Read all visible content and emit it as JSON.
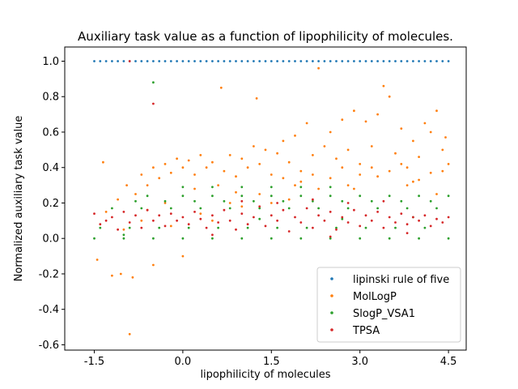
{
  "chart_data": {
    "type": "scatter",
    "title": "Auxiliary task value as a function of lipophilicity of molecules.",
    "xlabel": "lipophilicity of molecules",
    "ylabel": "Normalized auxiliary task value",
    "xlim": [
      -2.0,
      4.8
    ],
    "ylim": [
      -0.63,
      1.08
    ],
    "xticks": [
      -1.5,
      0.0,
      1.5,
      3.0,
      4.5
    ],
    "xtick_labels": [
      "-1.5",
      "0.0",
      "1.5",
      "3.0",
      "4.5"
    ],
    "yticks": [
      -0.6,
      -0.4,
      -0.2,
      0.0,
      0.2,
      0.4,
      0.6,
      0.8,
      1.0
    ],
    "ytick_labels": [
      "-0.6",
      "-0.4",
      "-0.2",
      "0.0",
      "0.2",
      "0.4",
      "0.6",
      "0.8",
      "1.0"
    ],
    "grid": false,
    "legend_position": "lower-right",
    "series": [
      {
        "name": "lipinski rule of five",
        "color": "#1f77b4",
        "points": [
          [
            -1.5,
            1.0
          ],
          [
            -1.4,
            1.0
          ],
          [
            -1.3,
            1.0
          ],
          [
            -1.2,
            1.0
          ],
          [
            -1.1,
            1.0
          ],
          [
            -1.0,
            1.0
          ],
          [
            -0.9,
            1.0
          ],
          [
            -0.8,
            1.0
          ],
          [
            -0.7,
            1.0
          ],
          [
            -0.6,
            1.0
          ],
          [
            -0.5,
            1.0
          ],
          [
            -0.4,
            1.0
          ],
          [
            -0.3,
            1.0
          ],
          [
            -0.2,
            1.0
          ],
          [
            -0.1,
            1.0
          ],
          [
            0.0,
            1.0
          ],
          [
            0.1,
            1.0
          ],
          [
            0.2,
            1.0
          ],
          [
            0.3,
            1.0
          ],
          [
            0.4,
            1.0
          ],
          [
            0.5,
            1.0
          ],
          [
            0.6,
            1.0
          ],
          [
            0.7,
            1.0
          ],
          [
            0.8,
            1.0
          ],
          [
            0.9,
            1.0
          ],
          [
            1.0,
            1.0
          ],
          [
            1.1,
            1.0
          ],
          [
            1.2,
            1.0
          ],
          [
            1.3,
            1.0
          ],
          [
            1.4,
            1.0
          ],
          [
            1.5,
            1.0
          ],
          [
            1.6,
            1.0
          ],
          [
            1.7,
            1.0
          ],
          [
            1.8,
            1.0
          ],
          [
            1.9,
            1.0
          ],
          [
            2.0,
            1.0
          ],
          [
            2.1,
            1.0
          ],
          [
            2.2,
            1.0
          ],
          [
            2.3,
            1.0
          ],
          [
            2.4,
            1.0
          ],
          [
            2.5,
            1.0
          ],
          [
            2.6,
            1.0
          ],
          [
            2.7,
            1.0
          ],
          [
            2.8,
            1.0
          ],
          [
            2.9,
            1.0
          ],
          [
            3.0,
            1.0
          ],
          [
            3.1,
            1.0
          ],
          [
            3.2,
            1.0
          ],
          [
            3.3,
            1.0
          ],
          [
            3.4,
            1.0
          ],
          [
            3.5,
            1.0
          ],
          [
            3.6,
            1.0
          ],
          [
            3.7,
            1.0
          ],
          [
            3.8,
            1.0
          ],
          [
            3.9,
            1.0
          ],
          [
            4.0,
            1.0
          ],
          [
            4.1,
            1.0
          ],
          [
            4.2,
            1.0
          ],
          [
            4.3,
            1.0
          ],
          [
            4.4,
            1.0
          ],
          [
            4.5,
            1.0
          ]
        ]
      },
      {
        "name": "MolLogP",
        "color": "#ff7f0e",
        "points": [
          [
            -1.45,
            -0.12
          ],
          [
            -1.35,
            0.43
          ],
          [
            -1.2,
            -0.21
          ],
          [
            -1.05,
            -0.2
          ],
          [
            -0.9,
            -0.54
          ],
          [
            -0.85,
            -0.22
          ],
          [
            -1.3,
            0.15
          ],
          [
            -1.1,
            0.22
          ],
          [
            -0.95,
            0.3
          ],
          [
            -0.8,
            0.25
          ],
          [
            -0.7,
            0.36
          ],
          [
            -0.6,
            0.3
          ],
          [
            -0.5,
            0.4
          ],
          [
            -0.4,
            0.34
          ],
          [
            -0.3,
            0.42
          ],
          [
            -0.2,
            0.37
          ],
          [
            -0.1,
            0.45
          ],
          [
            0.0,
            0.4
          ],
          [
            0.1,
            0.44
          ],
          [
            0.2,
            0.36
          ],
          [
            0.3,
            0.47
          ],
          [
            0.4,
            0.4
          ],
          [
            0.5,
            0.43
          ],
          [
            0.65,
            0.85
          ],
          [
            0.7,
            0.38
          ],
          [
            0.8,
            0.47
          ],
          [
            0.9,
            0.35
          ],
          [
            1.0,
            0.45
          ],
          [
            1.1,
            0.4
          ],
          [
            1.2,
            0.52
          ],
          [
            1.25,
            0.79
          ],
          [
            1.3,
            0.42
          ],
          [
            1.4,
            0.5
          ],
          [
            1.5,
            0.36
          ],
          [
            1.6,
            0.48
          ],
          [
            1.7,
            0.55
          ],
          [
            1.8,
            0.43
          ],
          [
            1.9,
            0.58
          ],
          [
            2.0,
            0.38
          ],
          [
            2.1,
            0.65
          ],
          [
            2.2,
            0.47
          ],
          [
            2.3,
            0.96
          ],
          [
            2.4,
            0.52
          ],
          [
            2.5,
            0.6
          ],
          [
            2.6,
            0.45
          ],
          [
            2.7,
            0.67
          ],
          [
            2.8,
            0.5
          ],
          [
            2.9,
            0.72
          ],
          [
            3.0,
            0.42
          ],
          [
            3.1,
            0.66
          ],
          [
            3.2,
            0.52
          ],
          [
            3.3,
            0.7
          ],
          [
            3.4,
            0.86
          ],
          [
            3.5,
            0.8
          ],
          [
            3.6,
            0.48
          ],
          [
            3.7,
            0.62
          ],
          [
            3.8,
            0.4
          ],
          [
            3.9,
            0.55
          ],
          [
            4.0,
            0.46
          ],
          [
            4.1,
            0.65
          ],
          [
            4.2,
            0.6
          ],
          [
            4.3,
            0.72
          ],
          [
            4.4,
            0.5
          ],
          [
            4.45,
            0.57
          ],
          [
            4.5,
            0.42
          ],
          [
            -0.5,
            -0.15
          ],
          [
            0.0,
            -0.1
          ],
          [
            -0.2,
            0.07
          ],
          [
            0.3,
            0.14
          ],
          [
            0.8,
            0.2
          ],
          [
            1.3,
            0.25
          ],
          [
            1.8,
            0.22
          ],
          [
            2.3,
            0.28
          ],
          [
            2.8,
            0.3
          ],
          [
            3.3,
            0.35
          ],
          [
            3.8,
            0.3
          ],
          [
            4.3,
            0.25
          ],
          [
            -0.6,
            0.16
          ],
          [
            0.5,
            0.1
          ],
          [
            1.0,
            0.18
          ],
          [
            1.5,
            0.2
          ],
          [
            2.0,
            0.32
          ],
          [
            2.5,
            0.34
          ],
          [
            3.0,
            0.36
          ],
          [
            3.5,
            0.38
          ],
          [
            4.0,
            0.33
          ],
          [
            0.2,
            0.28
          ],
          [
            0.6,
            0.3
          ],
          [
            1.7,
            0.34
          ],
          [
            2.2,
            0.36
          ],
          [
            2.7,
            0.4
          ],
          [
            3.2,
            0.4
          ],
          [
            3.7,
            0.42
          ],
          [
            4.2,
            0.37
          ],
          [
            -1.0,
            0.05
          ],
          [
            -0.7,
            0.1
          ],
          [
            -0.3,
            0.2
          ],
          [
            0.9,
            0.26
          ],
          [
            1.9,
            0.3
          ],
          [
            2.9,
            0.28
          ],
          [
            3.9,
            0.32
          ],
          [
            4.4,
            0.38
          ]
        ]
      },
      {
        "name": "SlogP_VSA1",
        "color": "#2ca02c",
        "points": [
          [
            -0.5,
            0.88
          ],
          [
            -1.5,
            0.0
          ],
          [
            -1.0,
            0.0
          ],
          [
            -0.5,
            0.0
          ],
          [
            0.0,
            0.0
          ],
          [
            0.5,
            0.0
          ],
          [
            1.0,
            0.0
          ],
          [
            1.5,
            0.0
          ],
          [
            2.0,
            0.0
          ],
          [
            2.5,
            0.0
          ],
          [
            3.0,
            0.0
          ],
          [
            3.5,
            0.0
          ],
          [
            4.0,
            0.0
          ],
          [
            4.5,
            0.0
          ],
          [
            -1.4,
            0.06
          ],
          [
            -0.9,
            0.06
          ],
          [
            -0.4,
            0.06
          ],
          [
            0.1,
            0.06
          ],
          [
            0.6,
            0.06
          ],
          [
            1.1,
            0.06
          ],
          [
            1.6,
            0.06
          ],
          [
            2.1,
            0.06
          ],
          [
            2.6,
            0.06
          ],
          [
            3.1,
            0.06
          ],
          [
            3.6,
            0.06
          ],
          [
            4.1,
            0.06
          ],
          [
            -1.2,
            0.17
          ],
          [
            -0.7,
            0.17
          ],
          [
            -0.2,
            0.17
          ],
          [
            0.3,
            0.17
          ],
          [
            0.8,
            0.17
          ],
          [
            1.3,
            0.17
          ],
          [
            1.8,
            0.17
          ],
          [
            2.3,
            0.17
          ],
          [
            2.8,
            0.17
          ],
          [
            3.3,
            0.17
          ],
          [
            3.8,
            0.17
          ],
          [
            4.3,
            0.17
          ],
          [
            -0.8,
            0.21
          ],
          [
            -0.3,
            0.21
          ],
          [
            0.2,
            0.21
          ],
          [
            0.7,
            0.21
          ],
          [
            1.2,
            0.21
          ],
          [
            1.7,
            0.21
          ],
          [
            2.2,
            0.21
          ],
          [
            2.7,
            0.21
          ],
          [
            3.2,
            0.21
          ],
          [
            3.7,
            0.21
          ],
          [
            4.2,
            0.21
          ],
          [
            -0.6,
            0.24
          ],
          [
            0.0,
            0.24
          ],
          [
            0.5,
            0.24
          ],
          [
            1.0,
            0.24
          ],
          [
            1.5,
            0.24
          ],
          [
            2.0,
            0.24
          ],
          [
            2.5,
            0.24
          ],
          [
            3.0,
            0.24
          ],
          [
            3.5,
            0.24
          ],
          [
            4.0,
            0.24
          ],
          [
            4.5,
            0.24
          ],
          [
            0.0,
            0.29
          ],
          [
            0.5,
            0.29
          ],
          [
            1.0,
            0.29
          ],
          [
            1.5,
            0.29
          ],
          [
            2.0,
            0.29
          ],
          [
            2.5,
            0.29
          ],
          [
            -1.0,
            0.02
          ],
          [
            1.3,
            0.11
          ],
          [
            2.7,
            0.11
          ],
          [
            3.9,
            0.12
          ]
        ]
      },
      {
        "name": "TPSA",
        "color": "#d62728",
        "points": [
          [
            -0.5,
            0.76
          ],
          [
            -0.9,
            1.0
          ],
          [
            -1.5,
            0.14
          ],
          [
            -1.4,
            0.08
          ],
          [
            -1.3,
            0.1
          ],
          [
            -1.2,
            0.12
          ],
          [
            -1.1,
            0.05
          ],
          [
            -1.0,
            0.15
          ],
          [
            -0.9,
            0.09
          ],
          [
            -0.8,
            0.13
          ],
          [
            -0.7,
            0.06
          ],
          [
            -0.6,
            0.16
          ],
          [
            -0.5,
            0.1
          ],
          [
            -0.4,
            0.13
          ],
          [
            -0.3,
            0.07
          ],
          [
            -0.2,
            0.14
          ],
          [
            -0.1,
            0.1
          ],
          [
            0.0,
            0.12
          ],
          [
            0.1,
            0.08
          ],
          [
            0.2,
            0.15
          ],
          [
            0.3,
            0.11
          ],
          [
            0.4,
            0.06
          ],
          [
            0.5,
            0.13
          ],
          [
            0.6,
            0.09
          ],
          [
            0.7,
            0.16
          ],
          [
            0.8,
            0.1
          ],
          [
            0.9,
            0.05
          ],
          [
            1.0,
            0.14
          ],
          [
            1.1,
            0.08
          ],
          [
            1.2,
            0.12
          ],
          [
            1.3,
            0.18
          ],
          [
            1.4,
            0.07
          ],
          [
            1.5,
            0.13
          ],
          [
            1.6,
            0.1
          ],
          [
            1.7,
            0.16
          ],
          [
            1.8,
            0.04
          ],
          [
            1.9,
            0.12
          ],
          [
            2.0,
            0.09
          ],
          [
            2.1,
            0.17
          ],
          [
            2.2,
            0.06
          ],
          [
            2.3,
            0.13
          ],
          [
            2.4,
            0.1
          ],
          [
            2.5,
            0.15
          ],
          [
            2.6,
            0.05
          ],
          [
            2.7,
            0.12
          ],
          [
            2.8,
            0.09
          ],
          [
            2.9,
            0.16
          ],
          [
            3.0,
            0.07
          ],
          [
            3.1,
            0.13
          ],
          [
            3.2,
            0.1
          ],
          [
            3.3,
            0.15
          ],
          [
            3.4,
            0.06
          ],
          [
            3.5,
            0.12
          ],
          [
            3.6,
            0.09
          ],
          [
            3.7,
            0.14
          ],
          [
            3.8,
            0.08
          ],
          [
            3.9,
            0.12
          ],
          [
            4.0,
            0.1
          ],
          [
            4.1,
            0.13
          ],
          [
            4.2,
            0.07
          ],
          [
            4.3,
            0.11
          ],
          [
            4.4,
            0.09
          ],
          [
            4.5,
            0.12
          ],
          [
            1.0,
            0.21
          ],
          [
            1.6,
            0.2
          ],
          [
            2.2,
            0.22
          ],
          [
            2.8,
            0.2
          ],
          [
            3.4,
            0.21
          ],
          [
            0.5,
            0.02
          ],
          [
            2.5,
            0.01
          ],
          [
            3.8,
            0.03
          ]
        ]
      }
    ]
  }
}
